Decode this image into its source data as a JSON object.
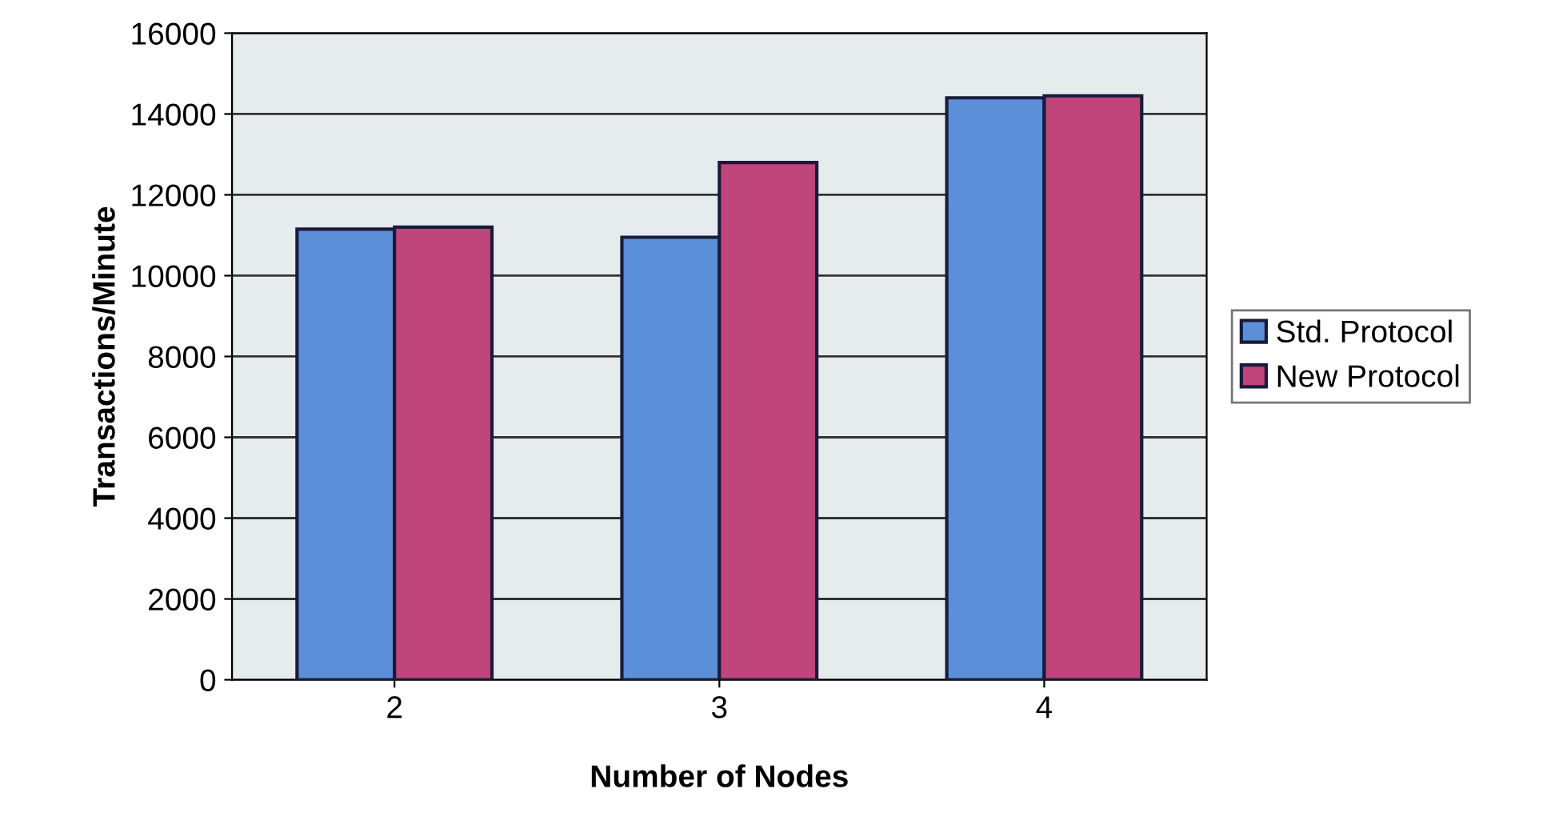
{
  "chart_data": {
    "type": "bar",
    "xlabel": "Number of Nodes",
    "ylabel": "Transactions/Minute",
    "categories": [
      "2",
      "3",
      "4"
    ],
    "series": [
      {
        "name": "Std. Protocol",
        "color": "#5b8fd8",
        "values": [
          11150,
          10950,
          14400
        ]
      },
      {
        "name": "New Protocol",
        "color": "#c0457a",
        "values": [
          11200,
          12800,
          14450
        ]
      }
    ],
    "ylim": [
      0,
      16000
    ],
    "yticks": [
      0,
      2000,
      4000,
      6000,
      8000,
      10000,
      12000,
      14000,
      16000
    ],
    "grid": "y",
    "legend": "right"
  }
}
